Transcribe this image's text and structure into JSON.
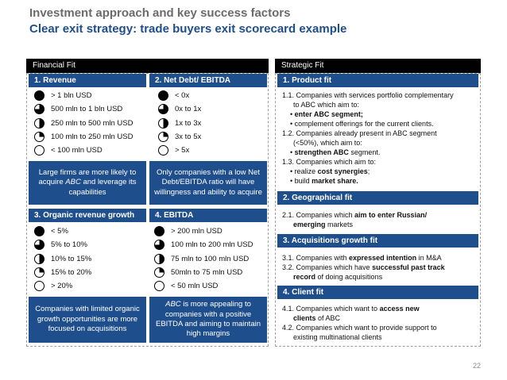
{
  "title": "Investment approach and key success factors",
  "subtitle": "Clear exit strategy: trade buyers exit scorecard example",
  "colors": {
    "accent": "#1f4e8c",
    "bar": "#000000",
    "title_gray": "#6b6b6b"
  },
  "financial_fit": {
    "label": "Financial Fit",
    "revenue": {
      "header": "1. Revenue",
      "items": [
        "> 1 bln USD",
        "500 mln to 1 bln USD",
        "250 mln to 500 mln USD",
        "100 mln to 250 mln USD",
        "< 100 mln USD"
      ],
      "fills": [
        1,
        0.75,
        0.5,
        0.25,
        0
      ],
      "note_pre": "Large firms are more likely to acquire ",
      "note_em": "ABC",
      "note_post": " and leverage its capabilities"
    },
    "net_debt": {
      "header": "2. Net Debt/ EBITDA",
      "items": [
        "< 0x",
        "0x to 1x",
        "1x to 3x",
        "3x to 5x",
        "> 5x"
      ],
      "fills": [
        1,
        0.75,
        0.5,
        0.25,
        0
      ],
      "note": "Only companies with a low Net Debt/EBITDA ratio will have willingness and ability to acquire"
    },
    "organic_growth": {
      "header": "3. Organic revenue growth",
      "items": [
        "< 5%",
        "5% to 10%",
        "10% to 15%",
        "15% to 20%",
        "> 20%"
      ],
      "fills": [
        1,
        0.75,
        0.5,
        0.25,
        0
      ],
      "note": "Companies with limited organic growth opportunities are more focused on acquisitions"
    },
    "ebitda": {
      "header": "4. EBITDA",
      "items": [
        "> 200 mln USD",
        "100 mln to 200 mln USD",
        "75 mln to 100 mln USD",
        "50mln to 75 mln USD",
        "< 50 mln USD"
      ],
      "fills": [
        1,
        0.75,
        0.5,
        0.25,
        0
      ],
      "note_em": "ABC",
      "note_post": " is more appealing to companies with a positive EBITDA and aiming to maintain high margins"
    }
  },
  "strategic_fit": {
    "label": "Strategic Fit",
    "product_fit": {
      "header": "1. Product fit",
      "l1": "1.1. Companies with services portfolio complementary",
      "l2": "to ABC which aim to:",
      "l3_pre": "• ",
      "l3_bold": "enter ABC segment;",
      "l4": "• complement offerings for the current clients.",
      "l5": "1.2. Companies already present in ABC segment",
      "l6": "(<50%), which aim to:",
      "l7_pre": "• ",
      "l7_bold": "strengthen ABC",
      "l7_post": " segment.",
      "l8": "1.3. Companies which aim to:",
      "l9_pre": "• realize ",
      "l9_bold": "cost synergies",
      "l9_post": ";",
      "l10_pre": "• build ",
      "l10_bold": "market share."
    },
    "geo_fit": {
      "header": "2. Geographical fit",
      "l1_pre": "2.1. Companies which ",
      "l1_bold": "aim to enter Russian/",
      "l2_bold": "emerging",
      "l2_post": " markets"
    },
    "acq_fit": {
      "header": "3. Acquisitions growth fit",
      "l1_pre": "3.1. Companies with ",
      "l1_bold": "expressed intention",
      "l1_post": " in M&A",
      "l2_pre": "3.2. Companies which have ",
      "l2_bold": "successful past track",
      "l3_bold": "record",
      "l3_post": " of doing acquisitions"
    },
    "client_fit": {
      "header": "4. Client fit",
      "l1_pre": "4.1. Companies which want to ",
      "l1_bold": "access new",
      "l2_bold": "clients",
      "l2_post": " of ABC",
      "l3": "4.2. Companies which want to provide support to",
      "l4": "existing multinational clients"
    }
  },
  "page_number": "22"
}
